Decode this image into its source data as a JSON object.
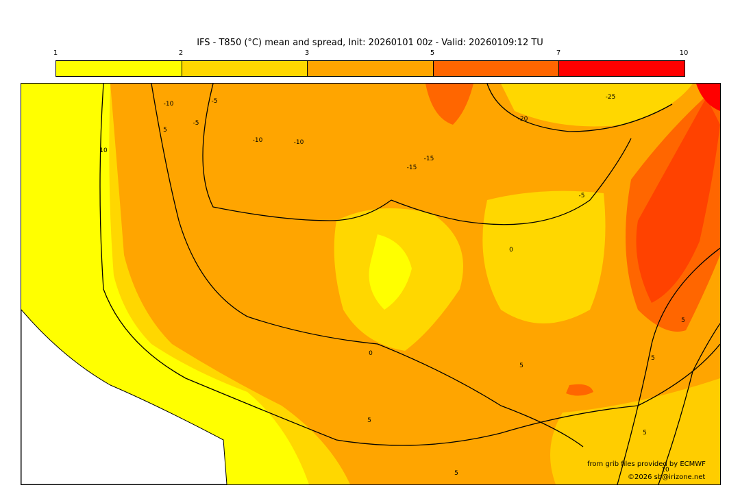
{
  "title": "IFS - T850 (°C) mean and spread, Init: 20260101 00z - Valid: 20260109:12 TU",
  "colorbar": {
    "ticks": [
      "1",
      "2",
      "3",
      "5",
      "7",
      "10"
    ],
    "colors": [
      "#ffff00",
      "#ffd700",
      "#ffa500",
      "#ff6600",
      "#ff0000"
    ]
  },
  "contour_labels": [
    "10",
    "5",
    "0",
    "-5",
    "-10",
    "-15",
    "-20",
    "-25",
    "-15",
    "-10",
    "-5",
    "0",
    "5",
    "5",
    "10",
    "5",
    "5",
    "5",
    "-5",
    "-10",
    "5"
  ],
  "credits": {
    "source": "from grib files provided by ECMWF",
    "copyright": "©2026 sb@irizone.net"
  }
}
